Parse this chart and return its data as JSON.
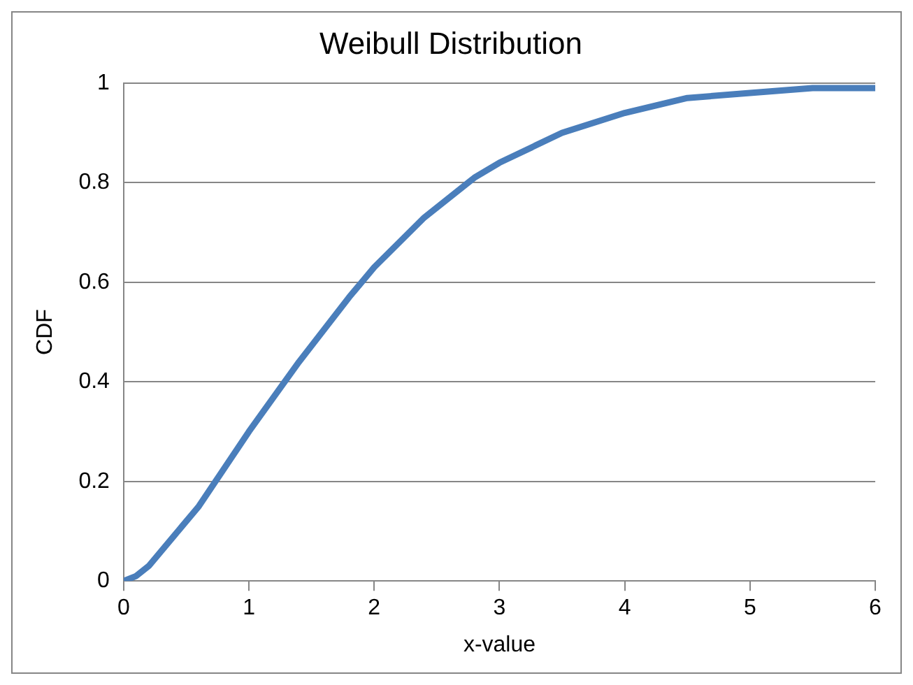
{
  "chart_data": {
    "type": "line",
    "title": "Weibull Distribution",
    "xlabel": "x-value",
    "ylabel": "CDF",
    "series": [
      {
        "color": "#4a7ebb",
        "x": [
          0,
          0.1,
          0.2,
          0.6,
          1,
          1.4,
          1.8,
          2,
          2.4,
          2.8,
          3,
          3.5,
          4,
          4.5,
          5,
          5.5,
          6
        ],
        "values": [
          0,
          0.01,
          0.03,
          0.15,
          0.3,
          0.44,
          0.57,
          0.63,
          0.73,
          0.81,
          0.84,
          0.9,
          0.94,
          0.97,
          0.98,
          0.99,
          0.99
        ]
      }
    ],
    "xlim": [
      0,
      6
    ],
    "xticks": [
      0,
      1,
      2,
      3,
      4,
      5,
      6
    ],
    "ylim": [
      0,
      1
    ],
    "yticks": [
      0,
      0.2,
      0.4,
      0.6,
      0.8,
      1
    ],
    "grid": "y",
    "legend": false,
    "marker": "none",
    "line_style": "solid"
  }
}
